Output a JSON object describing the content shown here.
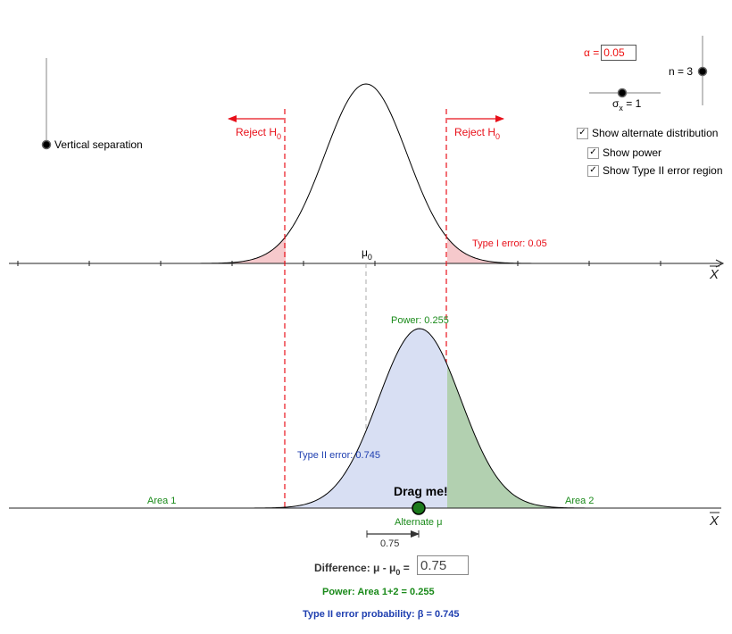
{
  "controls": {
    "vertical_separation_label": "Vertical separation",
    "alpha_label": "α =",
    "alpha_value": "0.05",
    "n_label": "n = 3",
    "sigma_label": "σ",
    "sigma_sub": "x",
    "sigma_value": " = 1",
    "checkboxes": [
      {
        "label": "Show alternate distribution",
        "checked": true
      },
      {
        "label": "Show power",
        "checked": true
      },
      {
        "label": "Show Type II error region",
        "checked": true
      }
    ]
  },
  "top_plot": {
    "reject_label": "Reject H",
    "reject_sub": "0",
    "type1_label": "Type I error: 0.05",
    "mu0_label": "μ",
    "mu0_sub": "0",
    "axis_label": "X"
  },
  "bottom_plot": {
    "power_label": "Power: 0.255",
    "type2_label": "Type II error: 0.745",
    "area1_label": "Area 1",
    "area2_label": "Area 2",
    "drag_label": "Drag me!",
    "alt_mu_label": "Alternate μ",
    "diff_arrow_label": "0.75",
    "axis_label": "X"
  },
  "footer": {
    "difference_label": "Difference: μ - μ",
    "difference_sub": "0",
    "difference_suffix": " =",
    "difference_value": "0.75",
    "power_line": "Power: Area 1+2 = 0.255",
    "type2_line": "Type II error probability: β = 0.745"
  },
  "model": {
    "mu0": 0,
    "mu_alt": 0.75,
    "sigma": 1,
    "n": 3,
    "alpha": 0.05,
    "power": 0.255,
    "beta": 0.745
  },
  "colors": {
    "reject_red": "#e8101a",
    "power_green": "#1a8a1a",
    "type2_blue": "#1f3fb0",
    "type2_fill": "#d8dff3",
    "power_fill": "#b2d0b0",
    "type1_fill": "#f6c9cc"
  }
}
